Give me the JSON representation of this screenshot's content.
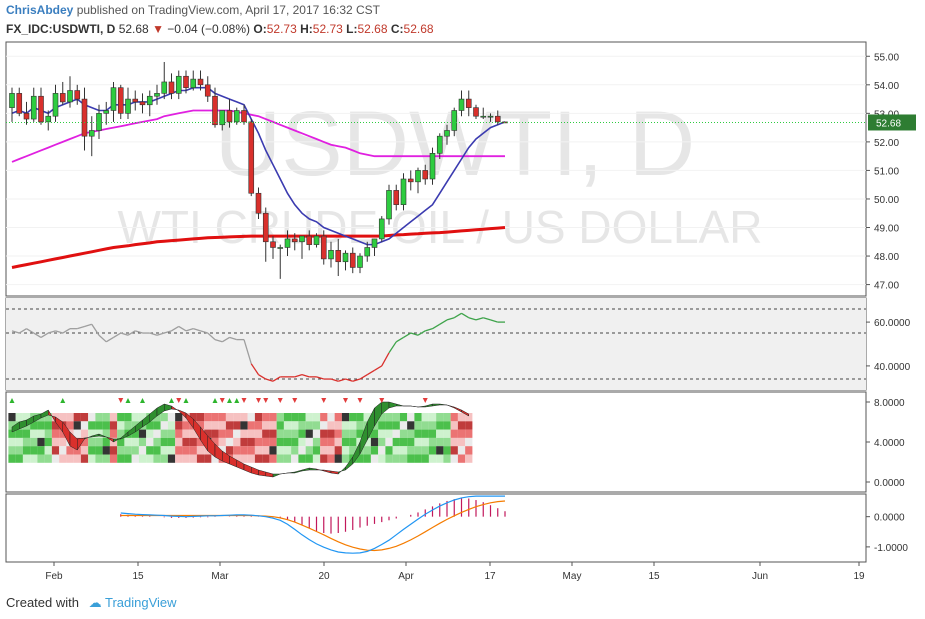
{
  "header": {
    "user": "ChrisAbdey",
    "published_text": " published on TradingView.com, April 17, 2017 16:32 CST",
    "symbol": "FX_IDC:USDWTI, D",
    "last": "52.68",
    "change": "−0.04 (−0.08%)",
    "o_label": "O:",
    "o": "52.73",
    "h_label": "H:",
    "h": "52.73",
    "l_label": "L:",
    "l": "52.68",
    "c_label": "C:",
    "c": "52.68"
  },
  "watermark": {
    "line1": "USDWTI, D",
    "line2": "WTI CRUDE OIL / US DOLLAR"
  },
  "footer": {
    "created_with": "Created with",
    "brand": "TradingView"
  },
  "colors": {
    "up": "#2ecc40",
    "down": "#d9302c",
    "ema_fast": "#3b3bb0",
    "ema_mid": "#e020e0",
    "ema_slow": "#e01010",
    "rsi": "#9e9e9e"
  },
  "chart_data": [
    {
      "type": "candlestick",
      "pane": "price",
      "ylim": [
        46.6,
        55.5
      ],
      "yticks": [
        "55.00",
        "54.00",
        "53.00",
        "52.00",
        "51.00",
        "50.00",
        "49.00",
        "48.00",
        "47.00"
      ],
      "xticks": [
        "Feb",
        "15",
        "Mar",
        "20",
        "Apr",
        "17",
        "May",
        "15",
        "Jun",
        "19"
      ],
      "last_price_label": "52.68",
      "ohlc": [
        [
          53.2,
          53.9,
          52.7,
          53.7
        ],
        [
          53.7,
          53.9,
          52.9,
          53.0
        ],
        [
          53.0,
          53.4,
          52.6,
          52.8
        ],
        [
          52.8,
          53.9,
          52.7,
          53.6
        ],
        [
          53.6,
          53.9,
          52.6,
          52.7
        ],
        [
          52.7,
          53.1,
          52.4,
          52.9
        ],
        [
          52.9,
          54.0,
          52.7,
          53.7
        ],
        [
          53.7,
          54.1,
          53.3,
          53.4
        ],
        [
          53.4,
          54.3,
          53.2,
          53.8
        ],
        [
          53.8,
          54.0,
          53.3,
          53.5
        ],
        [
          53.5,
          53.9,
          51.7,
          52.2
        ],
        [
          52.2,
          52.9,
          51.5,
          52.4
        ],
        [
          52.4,
          53.3,
          52.1,
          53.0
        ],
        [
          53.0,
          53.4,
          52.6,
          53.1
        ],
        [
          53.1,
          54.1,
          52.7,
          53.9
        ],
        [
          53.9,
          54.0,
          52.8,
          53.0
        ],
        [
          53.0,
          53.9,
          52.8,
          53.5
        ],
        [
          53.5,
          53.8,
          53.1,
          53.4
        ],
        [
          53.4,
          53.7,
          53.0,
          53.3
        ],
        [
          53.3,
          53.8,
          52.9,
          53.6
        ],
        [
          53.6,
          54.0,
          53.3,
          53.7
        ],
        [
          53.7,
          54.8,
          53.5,
          54.1
        ],
        [
          54.1,
          54.4,
          53.5,
          53.7
        ],
        [
          53.7,
          54.5,
          53.5,
          54.3
        ],
        [
          54.3,
          54.5,
          53.7,
          53.9
        ],
        [
          53.9,
          54.5,
          53.8,
          54.2
        ],
        [
          54.2,
          54.5,
          53.8,
          54.0
        ],
        [
          54.0,
          54.3,
          53.4,
          53.6
        ],
        [
          53.6,
          53.9,
          52.5,
          52.6
        ],
        [
          52.6,
          53.1,
          52.4,
          53.1
        ],
        [
          53.1,
          53.5,
          52.5,
          52.7
        ],
        [
          52.7,
          53.2,
          52.6,
          53.1
        ],
        [
          53.1,
          53.3,
          52.6,
          52.7
        ],
        [
          52.7,
          52.8,
          50.1,
          50.2
        ],
        [
          50.2,
          50.4,
          49.3,
          49.5
        ],
        [
          49.5,
          49.7,
          47.8,
          48.5
        ],
        [
          48.5,
          48.7,
          47.9,
          48.3
        ],
        [
          48.3,
          48.4,
          47.2,
          48.3
        ],
        [
          48.3,
          48.9,
          48.0,
          48.6
        ],
        [
          48.6,
          48.8,
          48.2,
          48.5
        ],
        [
          48.5,
          48.7,
          47.9,
          48.7
        ],
        [
          48.7,
          48.9,
          48.2,
          48.4
        ],
        [
          48.4,
          48.8,
          48.3,
          48.7
        ],
        [
          48.7,
          48.9,
          47.7,
          47.9
        ],
        [
          47.9,
          48.5,
          47.6,
          48.2
        ],
        [
          48.2,
          48.6,
          47.3,
          47.8
        ],
        [
          47.8,
          48.2,
          47.5,
          48.1
        ],
        [
          48.1,
          48.3,
          47.4,
          47.6
        ],
        [
          47.6,
          48.1,
          47.4,
          48.0
        ],
        [
          48.0,
          48.5,
          47.8,
          48.3
        ],
        [
          48.3,
          48.6,
          48.0,
          48.6
        ],
        [
          48.6,
          49.4,
          48.5,
          49.3
        ],
        [
          49.3,
          50.5,
          49.1,
          50.3
        ],
        [
          50.3,
          50.5,
          49.6,
          49.8
        ],
        [
          49.8,
          50.9,
          49.6,
          50.7
        ],
        [
          50.7,
          51.0,
          50.3,
          50.6
        ],
        [
          50.6,
          51.1,
          50.2,
          51.0
        ],
        [
          51.0,
          51.2,
          50.5,
          50.7
        ],
        [
          50.7,
          51.8,
          50.5,
          51.6
        ],
        [
          51.6,
          52.3,
          51.4,
          52.2
        ],
        [
          52.2,
          52.6,
          51.9,
          52.4
        ],
        [
          52.4,
          53.2,
          52.2,
          53.1
        ],
        [
          53.1,
          53.8,
          52.9,
          53.5
        ],
        [
          53.5,
          53.8,
          52.9,
          53.2
        ],
        [
          53.2,
          53.3,
          52.8,
          52.9
        ],
        [
          52.9,
          53.2,
          52.8,
          52.9
        ],
        [
          52.9,
          53.0,
          52.7,
          52.9
        ],
        [
          52.9,
          53.1,
          52.6,
          52.7
        ],
        [
          52.7,
          52.7,
          52.7,
          52.68
        ]
      ],
      "ema_fast": [
        53.0,
        53.1,
        53.0,
        53.2,
        53.1,
        53.0,
        53.2,
        53.3,
        53.4,
        53.5,
        53.3,
        53.2,
        53.1,
        53.1,
        53.3,
        53.3,
        53.3,
        53.4,
        53.4,
        53.4,
        53.5,
        53.6,
        53.7,
        53.8,
        53.8,
        53.9,
        53.9,
        53.9,
        53.7,
        53.6,
        53.5,
        53.4,
        53.3,
        52.8,
        52.3,
        51.7,
        51.2,
        50.7,
        50.2,
        49.8,
        49.5,
        49.3,
        49.2,
        49.0,
        48.9,
        48.8,
        48.7,
        48.6,
        48.5,
        48.4,
        48.4,
        48.5,
        48.6,
        48.8,
        49.0,
        49.2,
        49.4,
        49.6,
        49.8,
        50.2,
        50.6,
        51.0,
        51.4,
        51.8,
        52.1,
        52.3,
        52.5,
        52.6,
        52.7
      ],
      "ema_mid": [
        51.3,
        51.4,
        51.5,
        51.6,
        51.7,
        51.8,
        51.9,
        52.0,
        52.1,
        52.2,
        52.3,
        52.35,
        52.4,
        52.45,
        52.5,
        52.55,
        52.6,
        52.65,
        52.7,
        52.75,
        52.8,
        52.9,
        52.95,
        53.0,
        53.05,
        53.1,
        53.1,
        53.1,
        53.1,
        53.1,
        53.1,
        53.05,
        53.0,
        52.95,
        52.9,
        52.8,
        52.7,
        52.6,
        52.5,
        52.4,
        52.3,
        52.2,
        52.1,
        52.0,
        51.9,
        51.85,
        51.8,
        51.7,
        51.6,
        51.55,
        51.5,
        51.5,
        51.5,
        51.5,
        51.5,
        51.5,
        51.5,
        51.5,
        51.5,
        51.5,
        51.5,
        51.5,
        51.5,
        51.5,
        51.5,
        51.5,
        51.5,
        51.5,
        51.5
      ],
      "ema_slow": [
        47.6,
        47.65,
        47.7,
        47.75,
        47.8,
        47.85,
        47.9,
        47.95,
        48.0,
        48.05,
        48.1,
        48.15,
        48.2,
        48.25,
        48.3,
        48.33,
        48.36,
        48.4,
        48.43,
        48.46,
        48.5,
        48.52,
        48.54,
        48.56,
        48.58,
        48.6,
        48.62,
        48.64,
        48.65,
        48.66,
        48.67,
        48.68,
        48.69,
        48.7,
        48.7,
        48.7,
        48.7,
        48.7,
        48.7,
        48.7,
        48.7,
        48.7,
        48.7,
        48.7,
        48.7,
        48.7,
        48.7,
        48.7,
        48.7,
        48.7,
        48.7,
        48.7,
        48.72,
        48.74,
        48.75,
        48.77,
        48.78,
        48.8,
        48.81,
        48.82,
        48.84,
        48.86,
        48.88,
        48.9,
        48.92,
        48.94,
        48.96,
        48.98,
        49.0
      ]
    },
    {
      "type": "line",
      "pane": "rsi",
      "ylim": [
        29,
        71
      ],
      "yticks": [
        "60.0000",
        "40.0000"
      ],
      "levels": [
        66,
        55,
        34
      ],
      "values": [
        56,
        55,
        57,
        55,
        53,
        55,
        56,
        55,
        57,
        57,
        58,
        59,
        54,
        51,
        53,
        55,
        54,
        56,
        55,
        55,
        54,
        55,
        56,
        58,
        56,
        57,
        56,
        55,
        52,
        51,
        53,
        52,
        52,
        41,
        36,
        34,
        33,
        35,
        35,
        35,
        36,
        35,
        35,
        34,
        34,
        33,
        34,
        33,
        34,
        36,
        38,
        40,
        46,
        51,
        53,
        55,
        54,
        56,
        57,
        59,
        61,
        62,
        64,
        62,
        61,
        62,
        61,
        60,
        60
      ],
      "oversold_below": 41
    },
    {
      "type": "heatmap",
      "pane": "oscillator",
      "ylim": [
        -1,
        9
      ],
      "yticks": [
        "8.0000",
        "4.0000",
        "0.0000"
      ],
      "wave_fast": [
        5.5,
        6.0,
        6.2,
        6.6,
        6.8,
        7.2,
        6.0,
        5.0,
        3.6,
        3.2,
        4.3,
        4.6,
        4.8,
        4.5,
        4.0,
        4.4,
        5.0,
        5.6,
        6.2,
        6.8,
        7.4,
        7.8,
        7.6,
        7.1,
        6.4,
        5.4,
        4.2,
        3.1,
        2.5,
        2.1,
        1.8,
        1.5,
        1.2,
        0.9,
        0.7,
        0.6,
        0.5,
        0.8,
        0.9,
        1.0,
        1.2,
        1.4,
        1.3,
        1.1,
        0.9,
        0.8,
        1.5,
        2.5,
        4.0,
        6.0,
        7.4,
        8.0,
        8.0,
        7.8,
        7.6,
        7.6,
        7.5,
        7.6,
        7.8,
        7.8,
        7.7,
        7.4,
        7.0,
        6.6
      ],
      "wave_slow": [
        5.0,
        5.3,
        5.6,
        6.0,
        6.4,
        6.7,
        6.5,
        6.0,
        5.0,
        4.3,
        4.4,
        4.5,
        4.6,
        4.5,
        4.3,
        4.3,
        4.6,
        5.0,
        5.5,
        6.0,
        6.6,
        7.1,
        7.3,
        7.2,
        6.9,
        6.3,
        5.5,
        4.6,
        3.8,
        3.1,
        2.6,
        2.2,
        1.8,
        1.5,
        1.2,
        1.0,
        0.8,
        0.8,
        0.9,
        0.9,
        1.1,
        1.2,
        1.2,
        1.2,
        1.1,
        1.0,
        1.2,
        1.8,
        2.8,
        4.2,
        5.6,
        6.8,
        7.4,
        7.6,
        7.6,
        7.6,
        7.5,
        7.5,
        7.6,
        7.7,
        7.7,
        7.5,
        7.2,
        6.8
      ],
      "buy_markers": [
        0,
        7,
        16,
        18,
        22,
        24,
        28,
        30,
        31
      ],
      "sell_markers": [
        15,
        23,
        29,
        32,
        34,
        35,
        37,
        39,
        43,
        46,
        48,
        51,
        57
      ]
    },
    {
      "type": "bar",
      "pane": "macd",
      "ylim": [
        -1.5,
        0.75
      ],
      "yticks": [
        "0.0000",
        "-1.0000"
      ],
      "histogram": [
        0.08,
        0.06,
        0.04,
        0.02,
        0.02,
        0.0,
        -0.02,
        -0.04,
        -0.04,
        -0.04,
        -0.03,
        -0.02,
        -0.02,
        -0.01,
        0.0,
        0.01,
        0.02,
        0.02,
        0.02,
        0.01,
        0.0,
        -0.02,
        -0.05,
        -0.1,
        -0.18,
        -0.28,
        -0.38,
        -0.48,
        -0.54,
        -0.56,
        -0.54,
        -0.5,
        -0.44,
        -0.36,
        -0.3,
        -0.24,
        -0.18,
        -0.12,
        -0.06,
        0.0,
        0.06,
        0.14,
        0.24,
        0.34,
        0.44,
        0.52,
        0.58,
        0.62,
        0.6,
        0.55,
        0.48,
        0.38,
        0.28,
        0.18
      ],
      "macd_line": [
        0.12,
        0.1,
        0.08,
        0.07,
        0.06,
        0.05,
        0.04,
        0.02,
        0.01,
        0.0,
        0.01,
        0.02,
        0.03,
        0.03,
        0.04,
        0.05,
        0.06,
        0.06,
        0.05,
        0.03,
        0.0,
        -0.05,
        -0.12,
        -0.25,
        -0.42,
        -0.6,
        -0.76,
        -0.9,
        -1.01,
        -1.1,
        -1.17,
        -1.2,
        -1.21,
        -1.2,
        -1.15,
        -1.05,
        -0.92,
        -0.78,
        -0.6,
        -0.42,
        -0.25,
        -0.08,
        0.08,
        0.22,
        0.35,
        0.46,
        0.55,
        0.62,
        0.66,
        0.68,
        0.68,
        0.68,
        0.68,
        0.68
      ],
      "signal_line": [
        0.04,
        0.04,
        0.04,
        0.04,
        0.04,
        0.04,
        0.04,
        0.04,
        0.04,
        0.04,
        0.04,
        0.04,
        0.04,
        0.04,
        0.04,
        0.04,
        0.04,
        0.04,
        0.04,
        0.03,
        0.02,
        0.0,
        -0.04,
        -0.1,
        -0.18,
        -0.28,
        -0.38,
        -0.49,
        -0.6,
        -0.72,
        -0.83,
        -0.93,
        -1.01,
        -1.07,
        -1.11,
        -1.12,
        -1.1,
        -1.05,
        -0.98,
        -0.88,
        -0.77,
        -0.64,
        -0.5,
        -0.36,
        -0.22,
        -0.09,
        0.03,
        0.14,
        0.24,
        0.33,
        0.4,
        0.46,
        0.5,
        0.52
      ]
    }
  ]
}
